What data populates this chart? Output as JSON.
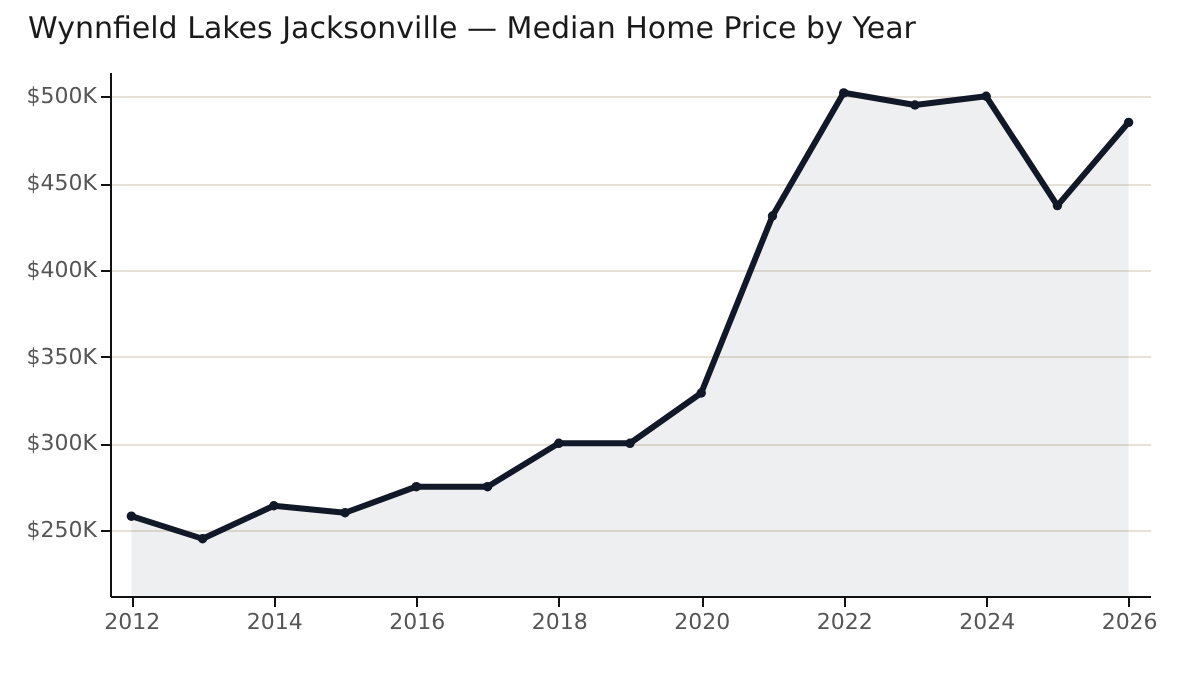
{
  "chart_data": {
    "type": "area",
    "title": "Wynnfield Lakes Jacksonville — Median Home Price by Year",
    "x": [
      2012,
      2013,
      2014,
      2015,
      2016,
      2017,
      2018,
      2019,
      2020,
      2021,
      2022,
      2023,
      2024,
      2025,
      2026
    ],
    "series": [
      {
        "color": "#111827",
        "values": [
          258000,
          245000,
          264000,
          260000,
          275000,
          275000,
          300000,
          300000,
          329000,
          431000,
          502000,
          495000,
          500000,
          437000,
          485000
        ]
      }
    ],
    "xlim": [
      2011.7,
      2026.3
    ],
    "xticks": [
      2012,
      2014,
      2016,
      2018,
      2020,
      2022,
      2024,
      2026
    ],
    "ylim": [
      212000,
      514000
    ],
    "yticks": [
      {
        "value": 250000,
        "label": "$250K"
      },
      {
        "value": 300000,
        "label": "$300K"
      },
      {
        "value": 350000,
        "label": "$350K"
      },
      {
        "value": 400000,
        "label": "$400K"
      },
      {
        "value": 450000,
        "label": "$450K"
      },
      {
        "value": 500000,
        "label": "$500K"
      }
    ],
    "grid": "y",
    "marker": "circle",
    "line_style": "solid"
  }
}
